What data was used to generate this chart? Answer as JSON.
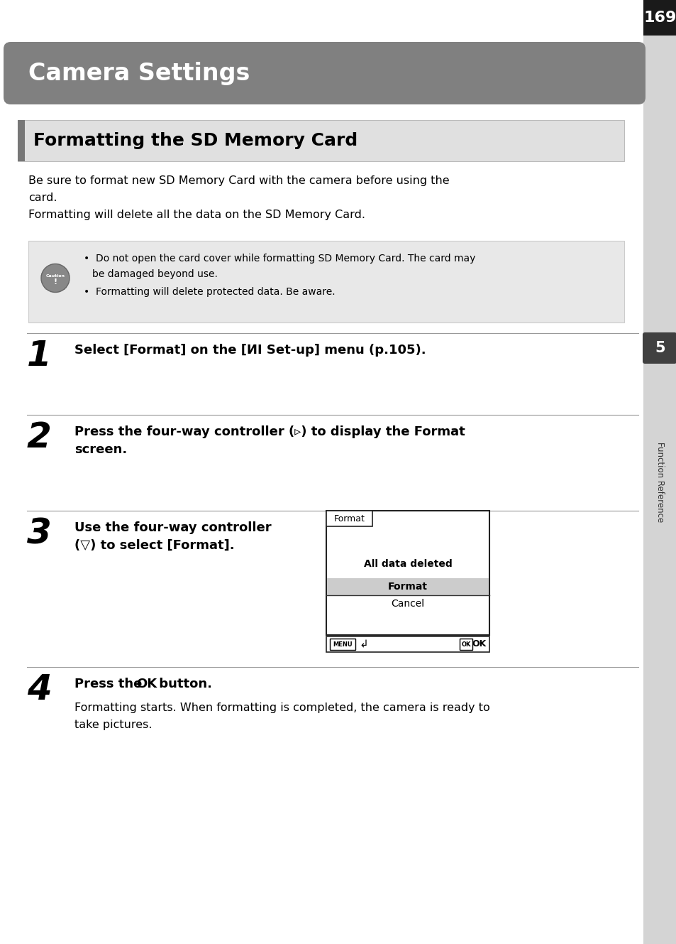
{
  "page_number": "169",
  "chapter_title": "Camera Settings",
  "section_title": "Formatting the SD Memory Card",
  "intro_lines": [
    "Be sure to format new SD Memory Card with the camera before using the",
    "card.",
    "Formatting will delete all the data on the SD Memory Card."
  ],
  "caution_line1": "Do not open the card cover while formatting SD Memory Card. The card may",
  "caution_line1b": "be damaged beyond use.",
  "caution_line2": "Formatting will delete protected data. Be aware.",
  "step1_text": "Select [Format] on the [ⵍⅠ Set-up] menu (p.105).",
  "step2_line1": "Press the four-way controller (▹) to display the Format",
  "step2_line2": "screen.",
  "step3_line1": "Use the four-way controller",
  "step3_line2": "(▽) to select [Format].",
  "step4_text": "Press the OK button.",
  "step4_sub1": "Formatting starts. When formatting is completed, the camera is ready to",
  "step4_sub2": "take pictures.",
  "sidebar_label": "Function Reference",
  "sidebar_number": "5",
  "page_bg": "#ffffff",
  "header_bg": "#808080",
  "header_text_color": "#ffffff",
  "sidebar_bg": "#d4d4d4",
  "tab_bg": "#1a1a1a",
  "caution_bg": "#e8e8e8",
  "section_accent": "#888888"
}
